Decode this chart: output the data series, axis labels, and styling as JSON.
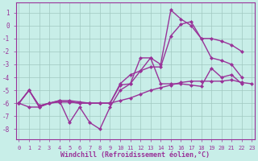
{
  "xlabel": "Windchill (Refroidissement éolien,°C)",
  "bg_color": "#c8eee8",
  "plot_bg": "#c8eee8",
  "line_color": "#993399",
  "grid_color": "#a0c8c0",
  "line_width": 1.0,
  "marker_size": 2.5,
  "yticks": [
    1,
    0,
    -1,
    -2,
    -3,
    -4,
    -5,
    -6,
    -7,
    -8
  ],
  "xticks": [
    0,
    1,
    2,
    3,
    4,
    5,
    6,
    7,
    8,
    9,
    10,
    11,
    12,
    13,
    14,
    15,
    16,
    17,
    18,
    19,
    20,
    21,
    22,
    23
  ],
  "xlim": [
    -0.3,
    23.3
  ],
  "ylim": [
    -8.8,
    1.8
  ],
  "series": [
    [
      -6.0,
      -5.0,
      -6.3,
      -6.0,
      -5.8,
      -7.5,
      -6.3,
      -7.5,
      -8.0,
      -6.3,
      -5.0,
      -4.5,
      -2.5,
      -2.5,
      -4.5,
      -4.5,
      -4.5,
      -4.6,
      -4.7,
      -3.3,
      -4.0,
      -3.8,
      -4.5,
      null
    ],
    [
      -6.0,
      -6.3,
      -6.3,
      -6.0,
      -5.8,
      -5.8,
      -5.9,
      -6.0,
      -6.0,
      -6.0,
      -5.8,
      -5.6,
      -5.3,
      -5.0,
      -4.8,
      -4.6,
      -4.4,
      -4.3,
      -4.3,
      -4.3,
      -4.3,
      -4.2,
      -4.4,
      -4.5
    ],
    [
      -6.0,
      -5.0,
      -6.2,
      -6.0,
      -5.9,
      -5.9,
      -6.0,
      -6.0,
      -6.0,
      -6.0,
      -4.6,
      -4.5,
      -3.5,
      -3.2,
      -3.2,
      -0.8,
      0.1,
      0.3,
      -1.0,
      -2.5,
      -2.7,
      -3.0,
      -4.0,
      null
    ],
    [
      -6.0,
      -5.0,
      -6.2,
      -6.0,
      -5.9,
      -5.9,
      -6.0,
      -6.0,
      -6.0,
      -6.0,
      -4.5,
      -3.8,
      -3.5,
      -2.5,
      -3.0,
      1.2,
      0.5,
      0.0,
      -1.0,
      -1.0,
      -1.2,
      -1.5,
      -2.0,
      null
    ]
  ]
}
